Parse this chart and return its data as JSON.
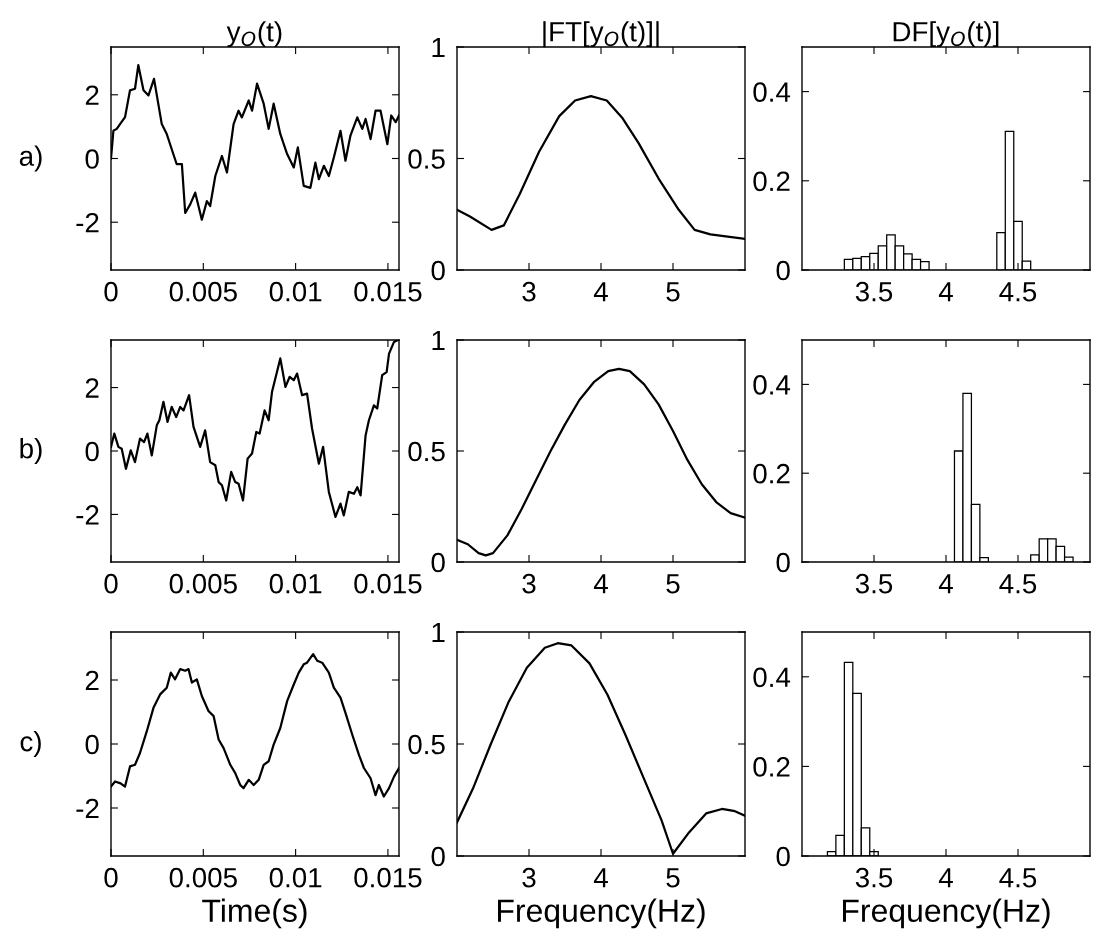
{
  "chart_data": [
    {
      "type": "line",
      "title": "y$_{O}$(t)",
      "annotations": [
        "a)"
      ],
      "color": "#000000",
      "xlim": [
        0,
        0.0156
      ],
      "ylim": [
        -3.5,
        3.5
      ],
      "xticks": [
        0,
        0.005,
        0.01,
        0.015
      ],
      "yticks": [
        -2,
        0,
        2
      ],
      "x": [
        0,
        0.00013,
        0.00031,
        0.00049,
        0.00076,
        0.00103,
        0.0013,
        0.00148,
        0.00176,
        0.00203,
        0.00233,
        0.00275,
        0.00302,
        0.00329,
        0.00356,
        0.00384,
        0.00402,
        0.00429,
        0.00456,
        0.00492,
        0.00519,
        0.00537,
        0.00565,
        0.00601,
        0.00628,
        0.00664,
        0.00691,
        0.00709,
        0.00746,
        0.00764,
        0.00791,
        0.00827,
        0.00854,
        0.00881,
        0.00917,
        0.00954,
        0.0099,
        0.01012,
        0.01044,
        0.0108,
        0.01107,
        0.01126,
        0.01153,
        0.0118,
        0.01207,
        0.01243,
        0.0127,
        0.01297,
        0.01334,
        0.01361,
        0.01379,
        0.01406,
        0.01433,
        0.0146,
        0.01497,
        0.01518,
        0.01542,
        0.0156
      ],
      "values": [
        0,
        0.87,
        0.93,
        1.08,
        1.3,
        2.14,
        2.19,
        2.93,
        2.14,
        1.98,
        2.5,
        1.08,
        0.77,
        0.29,
        -0.18,
        -0.18,
        -1.71,
        -1.44,
        -1.07,
        -1.92,
        -1.34,
        -1.49,
        -0.55,
        0.08,
        -0.44,
        1.08,
        1.5,
        1.29,
        1.82,
        1.5,
        2.35,
        1.72,
        0.93,
        1.72,
        0.77,
        0.14,
        -0.28,
        0.35,
        -0.86,
        -0.92,
        -0.13,
        -0.65,
        -0.23,
        -0.55,
        0.03,
        0.87,
        -0.07,
        0.72,
        1.29,
        0.93,
        1.24,
        0.61,
        1.5,
        1.5,
        0.45,
        1.35,
        1.14,
        1.35
      ]
    },
    {
      "type": "line",
      "title": "|FT[y$_{O}$(t)]|",
      "color": "#000000",
      "xlim": [
        2,
        6
      ],
      "ylim": [
        0,
        1
      ],
      "xticks": [
        3,
        4,
        5
      ],
      "yticks": [
        0,
        0.5,
        1
      ],
      "x": [
        2.0,
        2.18,
        2.48,
        2.65,
        2.87,
        3.14,
        3.42,
        3.64,
        3.86,
        4.08,
        4.3,
        4.52,
        4.8,
        5.08,
        5.3,
        5.52,
        6.0
      ],
      "values": [
        0.27,
        0.24,
        0.18,
        0.2,
        0.34,
        0.53,
        0.69,
        0.76,
        0.78,
        0.76,
        0.68,
        0.57,
        0.41,
        0.27,
        0.18,
        0.16,
        0.14
      ]
    },
    {
      "type": "histogram",
      "title": "DF[y$_{O}$(t)]",
      "color": "#ffffff",
      "xlim": [
        3,
        5
      ],
      "ylim": [
        0,
        0.5
      ],
      "xticks": [
        3.5,
        4,
        4.5
      ],
      "yticks": [
        0,
        0.2,
        0.4
      ],
      "bins": [
        3,
        3.0588,
        3.1176,
        3.1765,
        3.2353,
        3.2941,
        3.3529,
        3.4118,
        3.4706,
        3.5294,
        3.5882,
        3.6471,
        3.7059,
        3.7647,
        3.8235,
        3.8824,
        3.9412,
        4,
        4.0588,
        4.1176,
        4.1765,
        4.2353,
        4.2941,
        4.3529,
        4.4118,
        4.4706,
        4.5294,
        4.5882,
        4.6471,
        4.7059,
        4.7647,
        4.8235,
        4.8824,
        4.9412,
        5
      ],
      "values": [
        0,
        0,
        0,
        0,
        0,
        0.024,
        0.026,
        0.03,
        0.037,
        0.054,
        0.079,
        0.054,
        0.036,
        0.024,
        0.019,
        0,
        0,
        0,
        0,
        0,
        0,
        0,
        0,
        0.084,
        0.311,
        0.109,
        0.02,
        0,
        0,
        0,
        0,
        0,
        0,
        0
      ]
    },
    {
      "type": "line",
      "annotations": [
        "b)"
      ],
      "color": "#000000",
      "xlim": [
        0,
        0.0156
      ],
      "ylim": [
        -3.5,
        3.5
      ],
      "xticks": [
        0,
        0.005,
        0.01,
        0.015
      ],
      "yticks": [
        -2,
        0,
        2
      ],
      "x": [
        0,
        0.00018,
        0.0004,
        0.00058,
        0.00081,
        0.00107,
        0.0013,
        0.00157,
        0.00179,
        0.00197,
        0.00221,
        0.00248,
        0.00262,
        0.00284,
        0.00306,
        0.00329,
        0.00353,
        0.00375,
        0.00393,
        0.00423,
        0.00447,
        0.00483,
        0.0051,
        0.00537,
        0.00565,
        0.00583,
        0.00601,
        0.00624,
        0.00651,
        0.00673,
        0.00691,
        0.00715,
        0.0074,
        0.00764,
        0.00787,
        0.00805,
        0.00832,
        0.00854,
        0.00872,
        0.00917,
        0.00945,
        0.00968,
        0.0099,
        0.01008,
        0.01035,
        0.01062,
        0.01089,
        0.01126,
        0.01149,
        0.0118,
        0.01216,
        0.01243,
        0.01261,
        0.01288,
        0.01316,
        0.01334,
        0.01352,
        0.01379,
        0.01397,
        0.01424,
        0.01442,
        0.01469,
        0.01493,
        0.01506,
        0.01533,
        0.01551
      ],
      "values": [
        0.13,
        0.55,
        0.13,
        0.07,
        -0.56,
        0.02,
        -0.35,
        0.39,
        0.28,
        0.55,
        -0.14,
        0.81,
        0.97,
        1.55,
        0.92,
        1.39,
        1.07,
        1.39,
        1.28,
        1.76,
        0.76,
        0.13,
        0.65,
        -0.35,
        -0.45,
        -0.98,
        -1.08,
        -1.56,
        -0.66,
        -0.98,
        -1.03,
        -1.56,
        -0.24,
        -0.08,
        0.6,
        0.55,
        1.28,
        0.97,
        1.86,
        2.92,
        2.02,
        2.34,
        2.23,
        2.44,
        1.76,
        1.81,
        0.71,
        -0.4,
        0.13,
        -1.29,
        -2.08,
        -1.66,
        -2.03,
        -1.29,
        -1.35,
        -1.14,
        -1.4,
        0.49,
        0.97,
        1.44,
        1.34,
        2.39,
        2.49,
        3.07,
        3.44,
        3.49
      ]
    },
    {
      "type": "line",
      "color": "#000000",
      "xlim": [
        2,
        6
      ],
      "ylim": [
        0,
        1
      ],
      "xticks": [
        3,
        4,
        5
      ],
      "yticks": [
        0,
        0.5,
        1
      ],
      "x": [
        2.0,
        2.15,
        2.3,
        2.4,
        2.5,
        2.7,
        2.9,
        3.1,
        3.3,
        3.5,
        3.7,
        3.9,
        4.1,
        4.25,
        4.4,
        4.6,
        4.8,
        5.0,
        5.2,
        5.4,
        5.6,
        5.8,
        6.0
      ],
      "values": [
        0.1,
        0.08,
        0.04,
        0.03,
        0.04,
        0.12,
        0.24,
        0.37,
        0.5,
        0.62,
        0.73,
        0.81,
        0.86,
        0.87,
        0.86,
        0.8,
        0.71,
        0.59,
        0.46,
        0.35,
        0.27,
        0.22,
        0.2
      ]
    },
    {
      "type": "histogram",
      "color": "#ffffff",
      "xlim": [
        3,
        5
      ],
      "ylim": [
        0,
        0.5
      ],
      "xticks": [
        3.5,
        4,
        4.5
      ],
      "yticks": [
        0,
        0.2,
        0.4
      ],
      "bins": [
        3,
        3.0588,
        3.1176,
        3.1765,
        3.2353,
        3.2941,
        3.3529,
        3.4118,
        3.4706,
        3.5294,
        3.5882,
        3.6471,
        3.7059,
        3.7647,
        3.8235,
        3.8824,
        3.9412,
        4,
        4.0588,
        4.1176,
        4.1765,
        4.2353,
        4.2941,
        4.3529,
        4.4118,
        4.4706,
        4.5294,
        4.5882,
        4.6471,
        4.7059,
        4.7647,
        4.8235,
        4.8824,
        4.9412,
        5
      ],
      "values": [
        0,
        0,
        0,
        0,
        0,
        0,
        0,
        0,
        0,
        0,
        0,
        0,
        0,
        0,
        0,
        0,
        0,
        0,
        0.25,
        0.38,
        0.13,
        0.01,
        0,
        0,
        0,
        0,
        0,
        0.016,
        0.052,
        0.052,
        0.035,
        0.011,
        0,
        0
      ]
    },
    {
      "type": "line",
      "annotations": [
        "c)"
      ],
      "xlabel": "Time(s)",
      "color": "#000000",
      "xlim": [
        0,
        0.0156
      ],
      "ylim": [
        -3.5,
        3.5
      ],
      "xticks": [
        0,
        0.005,
        0.01,
        0.015
      ],
      "yticks": [
        -2,
        0,
        2
      ],
      "x": [
        0,
        0.00022,
        0.00052,
        0.00076,
        0.00103,
        0.0013,
        0.00157,
        0.00194,
        0.0023,
        0.00266,
        0.00302,
        0.00324,
        0.00347,
        0.00375,
        0.00402,
        0.0042,
        0.00438,
        0.00465,
        0.00492,
        0.00528,
        0.00556,
        0.00583,
        0.0061,
        0.00646,
        0.00673,
        0.007,
        0.00718,
        0.00746,
        0.00773,
        0.008,
        0.00827,
        0.00854,
        0.00881,
        0.00917,
        0.00954,
        0.0099,
        0.01017,
        0.01044,
        0.01062,
        0.01095,
        0.01117,
        0.01144,
        0.0118,
        0.01207,
        0.01243,
        0.0127,
        0.01307,
        0.01343,
        0.0137,
        0.01406,
        0.01433,
        0.01451,
        0.01478,
        0.01506,
        0.01533,
        0.0156
      ],
      "values": [
        -1.33,
        -1.17,
        -1.23,
        -1.33,
        -0.7,
        -0.65,
        -0.28,
        0.4,
        1.13,
        1.55,
        1.76,
        2.23,
        2.02,
        2.34,
        2.29,
        2.34,
        1.92,
        2.02,
        1.5,
        1.03,
        0.87,
        0.14,
        -0.13,
        -0.65,
        -0.91,
        -1.28,
        -1.38,
        -1.12,
        -1.28,
        -1.12,
        -0.65,
        -0.54,
        -0.02,
        0.5,
        1.34,
        1.86,
        2.23,
        2.49,
        2.54,
        2.81,
        2.6,
        2.54,
        2.23,
        1.76,
        1.45,
        0.97,
        0.29,
        -0.34,
        -0.75,
        -1.07,
        -1.6,
        -1.28,
        -1.64,
        -1.38,
        -1.02,
        -0.75
      ]
    },
    {
      "type": "line",
      "xlabel": "Frequency(Hz)",
      "color": "#000000",
      "xlim": [
        2,
        6
      ],
      "ylim": [
        0,
        1
      ],
      "xticks": [
        3,
        4,
        5
      ],
      "yticks": [
        0,
        0.5,
        1
      ],
      "x": [
        2.0,
        2.22,
        2.47,
        2.72,
        2.97,
        3.22,
        3.4,
        3.59,
        3.84,
        4.09,
        4.34,
        4.59,
        4.84,
        5.0,
        5.21,
        5.46,
        5.68,
        5.86,
        6.0
      ],
      "values": [
        0.15,
        0.3,
        0.5,
        0.69,
        0.84,
        0.93,
        0.95,
        0.94,
        0.86,
        0.72,
        0.54,
        0.35,
        0.16,
        0.01,
        0.1,
        0.19,
        0.21,
        0.2,
        0.18
      ]
    },
    {
      "type": "histogram",
      "xlabel": "Frequency(Hz)",
      "color": "#ffffff",
      "xlim": [
        3,
        5
      ],
      "ylim": [
        0,
        0.5
      ],
      "xticks": [
        3.5,
        4,
        4.5
      ],
      "yticks": [
        0,
        0.2,
        0.4
      ],
      "bins": [
        3,
        3.0588,
        3.1176,
        3.1765,
        3.2353,
        3.2941,
        3.3529,
        3.4118,
        3.4706,
        3.5294,
        3.5882,
        3.6471,
        3.7059,
        3.7647,
        3.8235,
        3.8824,
        3.9412,
        4,
        4.0588,
        4.1176,
        4.1765,
        4.2353,
        4.2941,
        4.3529,
        4.4118,
        4.4706,
        4.5294,
        4.5882,
        4.6471,
        4.7059,
        4.7647,
        4.8235,
        4.8824,
        4.9412,
        5
      ],
      "values": [
        0,
        0,
        0,
        0.01,
        0.046,
        0.432,
        0.363,
        0.063,
        0.01,
        0,
        0,
        0,
        0,
        0,
        0,
        0,
        0,
        0,
        0,
        0,
        0,
        0,
        0,
        0,
        0,
        0,
        0,
        0,
        0,
        0,
        0,
        0,
        0,
        0
      ]
    }
  ]
}
